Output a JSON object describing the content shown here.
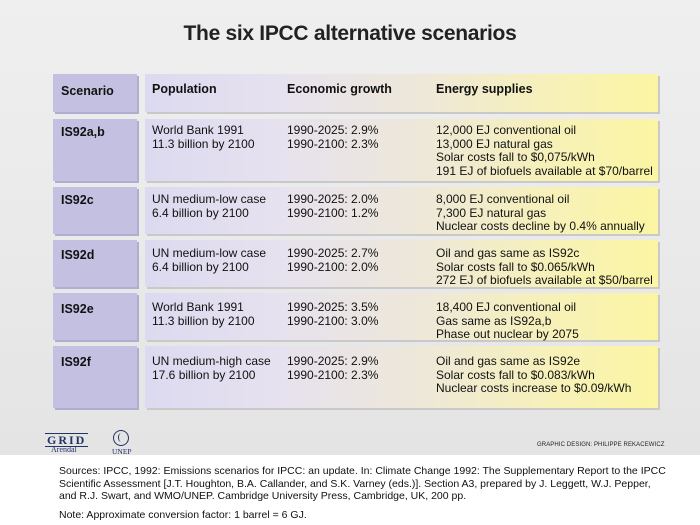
{
  "title": "The six IPCC alternative scenarios",
  "headers": {
    "scenario": "Scenario",
    "population": "Population",
    "economic_growth": "Economic growth",
    "energy_supplies": "Energy supplies"
  },
  "rows": [
    {
      "scenario": "IS92a,b",
      "population": [
        "World Bank 1991",
        "11.3 billion by 2100"
      ],
      "growth": [
        "1990-2025: 2.9%",
        "1990-2100: 2.3%"
      ],
      "energy": [
        "12,000 EJ conventional oil",
        "13,000 EJ natural gas",
        "Solar costs fall to $0,075/kWh",
        "191 EJ of biofuels available at $70/barrel"
      ]
    },
    {
      "scenario": "IS92c",
      "population": [
        "UN medium-low case",
        "6.4 billion by 2100"
      ],
      "growth": [
        "1990-2025: 2.0%",
        "1990-2100: 1.2%"
      ],
      "energy": [
        "8,000 EJ conventional oil",
        "7,300 EJ natural gas",
        "Nuclear costs decline by 0.4% annually"
      ]
    },
    {
      "scenario": "IS92d",
      "population": [
        "UN medium-low case",
        "6.4 billion by 2100"
      ],
      "growth": [
        "1990-2025: 2.7%",
        "1990-2100: 2.0%"
      ],
      "energy": [
        "Oil and gas same as IS92c",
        "Solar costs fall to $0.065/kWh",
        "272 EJ of biofuels available at $50/barrel"
      ]
    },
    {
      "scenario": "IS92e",
      "population": [
        "World Bank 1991",
        "11.3 billion by 2100"
      ],
      "growth": [
        "1990-2025: 3.5%",
        "1990-2100: 3.0%"
      ],
      "energy": [
        "18,400 EJ conventional oil",
        "Gas same as IS92a,b",
        "Phase out nuclear by 2075"
      ]
    },
    {
      "scenario": "IS92f",
      "population": [
        "UN medium-high case",
        "17.6 billion by 2100"
      ],
      "growth": [
        "1990-2025: 2.9%",
        "1990-2100: 2.3%"
      ],
      "energy": [
        "Oil and gas same as IS92e",
        "Solar costs fall to $0.083/kWh",
        "Nuclear costs increase to $0.09/kWh"
      ]
    }
  ],
  "logos": {
    "grid": "GRID",
    "arendal": "Arendal",
    "unep": "UNEP"
  },
  "credit": "GRAPHIC DESIGN: PHILIPPE REKACEWICZ",
  "sources": "Sources: IPCC, 1992: Emissions scenarios for IPCC: an update. In: Climate Change 1992: The Supplementary Report to the IPCC Scientific Assessment [J.T. Houghton, B.A. Callander, and S.K. Varney (eds.)]. Section A3, prepared by J. Leggett, W.J. Pepper, and R.J. Swart, and WMO/UNEP. Cambridge University Press, Cambridge, UK, 200 pp.",
  "note": "Note: Approximate conversion factor: 1 barrel = 6 GJ."
}
